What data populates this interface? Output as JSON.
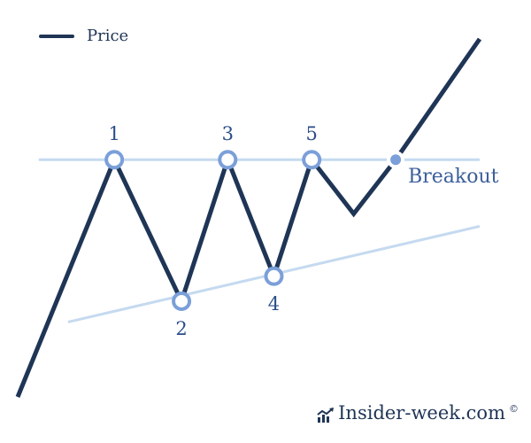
{
  "chart_data": {
    "type": "line",
    "legend": {
      "label": "Price",
      "placement": "top-left"
    },
    "series": [
      {
        "name": "Price",
        "points": [
          [
            0,
            0
          ],
          [
            2.3,
            5.7
          ],
          [
            3.9,
            2.3
          ],
          [
            5.0,
            5.7
          ],
          [
            6.1,
            2.9
          ],
          [
            7.0,
            5.7
          ],
          [
            8.0,
            4.4
          ],
          [
            9.0,
            5.7
          ],
          [
            11.0,
            8.6
          ]
        ]
      }
    ],
    "resistance_line": {
      "y": 5.7,
      "x_range": [
        0.5,
        11.0
      ]
    },
    "support_line": {
      "from": [
        1.2,
        1.8
      ],
      "to": [
        11.0,
        4.1
      ]
    },
    "touch_points": [
      {
        "label": "1",
        "x": 2.3,
        "y": 5.7,
        "label_position": "above"
      },
      {
        "label": "2",
        "x": 3.9,
        "y": 2.3,
        "label_position": "below"
      },
      {
        "label": "3",
        "x": 5.0,
        "y": 5.7,
        "label_position": "above"
      },
      {
        "label": "4",
        "x": 6.1,
        "y": 2.9,
        "label_position": "below"
      },
      {
        "label": "5",
        "x": 7.0,
        "y": 5.7,
        "label_position": "above"
      }
    ],
    "breakout": {
      "label": "Breakout",
      "x": 9.0,
      "y": 5.7
    },
    "x_range": [
      0,
      11.0
    ],
    "y_range": [
      0,
      8.6
    ],
    "axes_visible": false,
    "grid": false,
    "colors": {
      "price": "#1f3556",
      "resistance": "#c5daf0",
      "support": "#c5daf0",
      "marker": "#7b9fd9",
      "label": "#2a4d8a"
    }
  },
  "watermark": {
    "text": "Insider-week.com",
    "symbol": "©",
    "icon": "trend-chart-icon"
  }
}
